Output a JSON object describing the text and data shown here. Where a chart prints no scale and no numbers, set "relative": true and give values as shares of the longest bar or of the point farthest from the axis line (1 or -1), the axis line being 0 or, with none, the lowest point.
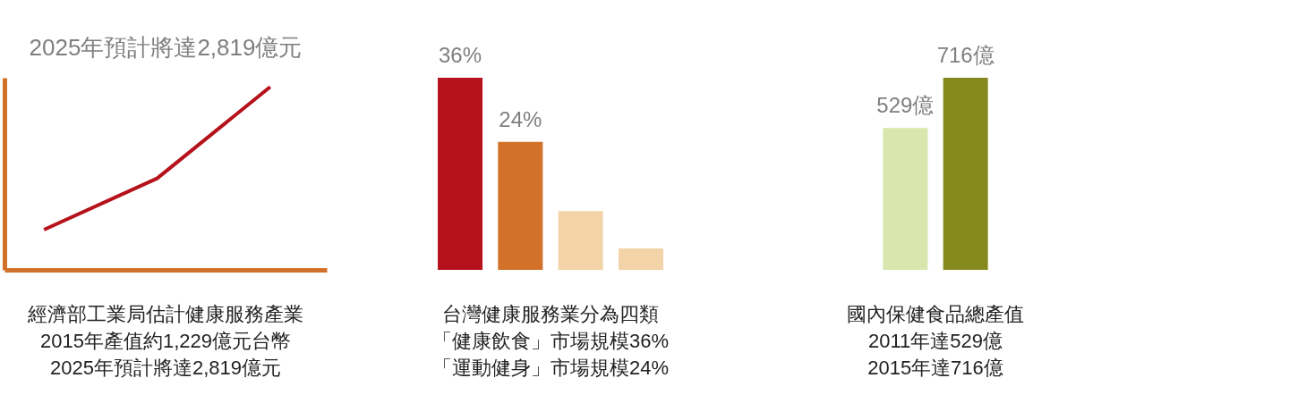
{
  "chart_data": [
    {
      "type": "line",
      "title": "2025年預計將達2,819億元",
      "categories": [
        null,
        null,
        null
      ],
      "values": [
        0.22,
        0.5,
        1
      ],
      "color": "#b5121b",
      "relative": true,
      "annotations": [
        "經濟部工業局估計健康服務產業",
        "2015年產值約1,229億元台幣",
        "2025年預計將達2,819億元"
      ]
    },
    {
      "type": "bar",
      "categories": [
        null,
        null,
        null,
        null
      ],
      "values": [
        36,
        24,
        11,
        4
      ],
      "colors": [
        "#b5121b",
        "#d2722a",
        "#f2d4a8",
        "#f2d4a8"
      ],
      "value_labels": [
        "36%",
        "24%",
        null,
        null
      ],
      "annotations": [
        "台灣健康服務業分為四類",
        "「健康飲食」市場規模36%",
        "「運動健身」市場規模24%"
      ]
    },
    {
      "type": "bar",
      "categories": [
        null,
        null
      ],
      "values": [
        529,
        716
      ],
      "colors": [
        "#d9e6ae",
        "#868a1e"
      ],
      "value_labels": [
        "529億",
        "716億"
      ],
      "annotations": [
        "國內保健食品總產值",
        "2011年達529億",
        "2015年達716億"
      ]
    }
  ]
}
